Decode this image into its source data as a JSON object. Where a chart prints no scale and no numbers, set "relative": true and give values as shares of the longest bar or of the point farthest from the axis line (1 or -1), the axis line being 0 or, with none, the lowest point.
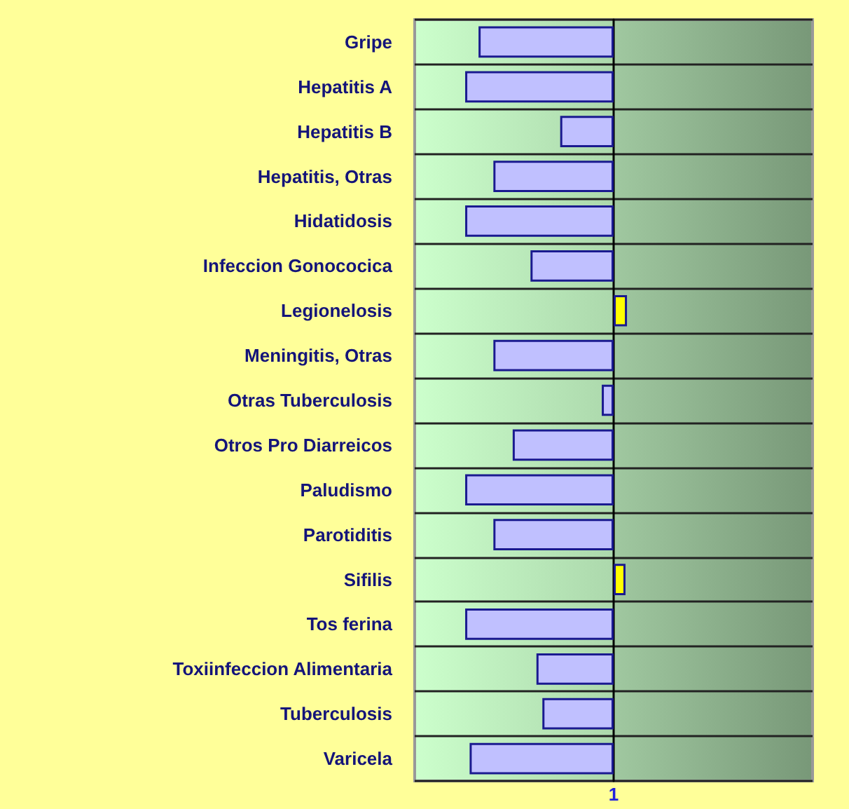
{
  "chart_data": {
    "type": "bar",
    "orientation": "horizontal",
    "relative": true,
    "grid": "y",
    "categories": [
      "Gripe",
      "Hepatitis A",
      "Hepatitis B",
      "Hepatitis, Otras",
      "Hidatidosis",
      "Infeccion Gonococica",
      "Legionelosis",
      "Meningitis, Otras",
      "Otras Tuberculosis",
      "Otros Pro Diarreicos",
      "Paludismo",
      "Parotiditis",
      "Sifilis",
      "Tos ferina",
      "Toxiinfeccion Alimentaria",
      "Tuberculosis",
      "Varicela"
    ],
    "values": [
      -0.91,
      -1,
      -0.36,
      -0.81,
      -1,
      -0.56,
      0.09,
      -0.81,
      -0.08,
      -0.68,
      -1,
      -0.81,
      0.08,
      -1,
      -0.52,
      -0.48,
      -0.97
    ],
    "colors": [
      "#c0c0ff",
      "#c0c0ff",
      "#c0c0ff",
      "#c0c0ff",
      "#c0c0ff",
      "#c0c0ff",
      "#ffff00",
      "#c0c0ff",
      "#c0c0ff",
      "#c0c0ff",
      "#c0c0ff",
      "#c0c0ff",
      "#ffff00",
      "#c0c0ff",
      "#c0c0ff",
      "#c0c0ff",
      "#c0c0ff"
    ],
    "annotations": [
      "1"
    ]
  }
}
